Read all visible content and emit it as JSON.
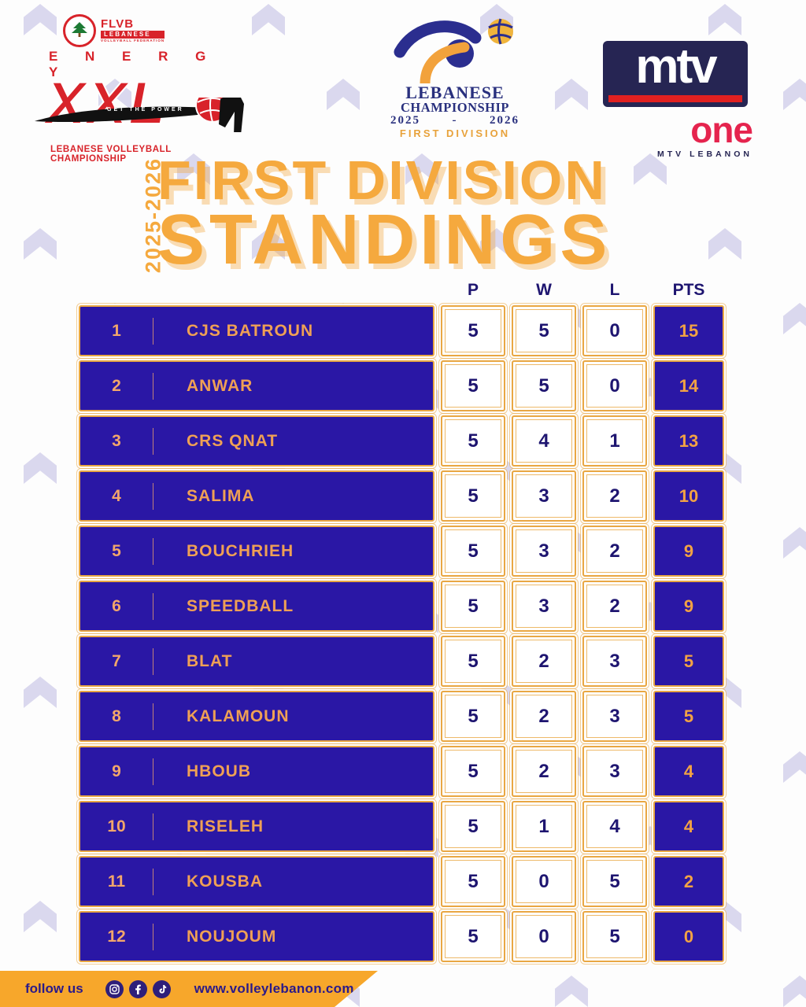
{
  "title": {
    "season_vertical": "2025-2026",
    "line1": "FIRST DIVISION",
    "line2": "STANDINGS"
  },
  "logos": {
    "flvb": {
      "name": "FLVB",
      "band": "LEBANESE",
      "sub": "VOLLEYBALL FEDERATION",
      "energy": "E N E R G Y",
      "xxl": "XXL",
      "swoosh_text": "GET THE POWER",
      "caption": "LEBANESE VOLLEYBALL CHAMPIONSHIP"
    },
    "championship": {
      "line1": "LEBANESE",
      "line2": "CHAMPIONSHIP",
      "year_left": "2025",
      "year_dash": "-",
      "year_right": "2026",
      "division": "FIRST DIVISION"
    },
    "mtv": {
      "mtv": "mtv",
      "one": "one",
      "caption": "MTV LEBANON"
    }
  },
  "chart_data": {
    "type": "table",
    "title": "FIRST DIVISION STANDINGS",
    "season": "2025-2026",
    "stat_columns": [
      "P",
      "W",
      "L",
      "PTS"
    ],
    "rows": [
      {
        "rank": "1",
        "team": "CJS BATROUN",
        "p": "5",
        "w": "5",
        "l": "0",
        "pts": "15"
      },
      {
        "rank": "2",
        "team": "ANWAR",
        "p": "5",
        "w": "5",
        "l": "0",
        "pts": "14"
      },
      {
        "rank": "3",
        "team": "CRS QNAT",
        "p": "5",
        "w": "4",
        "l": "1",
        "pts": "13"
      },
      {
        "rank": "4",
        "team": "SALIMA",
        "p": "5",
        "w": "3",
        "l": "2",
        "pts": "10"
      },
      {
        "rank": "5",
        "team": "BOUCHRIEH",
        "p": "5",
        "w": "3",
        "l": "2",
        "pts": "9"
      },
      {
        "rank": "6",
        "team": "SPEEDBALL",
        "p": "5",
        "w": "3",
        "l": "2",
        "pts": "9"
      },
      {
        "rank": "7",
        "team": "BLAT",
        "p": "5",
        "w": "2",
        "l": "3",
        "pts": "5"
      },
      {
        "rank": "8",
        "team": "KALAMOUN",
        "p": "5",
        "w": "2",
        "l": "3",
        "pts": "5"
      },
      {
        "rank": "9",
        "team": "HBOUB",
        "p": "5",
        "w": "2",
        "l": "3",
        "pts": "4"
      },
      {
        "rank": "10",
        "team": "RISELEH",
        "p": "5",
        "w": "1",
        "l": "4",
        "pts": "4"
      },
      {
        "rank": "11",
        "team": "KOUSBA",
        "p": "5",
        "w": "0",
        "l": "5",
        "pts": "2"
      },
      {
        "rank": "12",
        "team": "NOUJOUM",
        "p": "5",
        "w": "0",
        "l": "5",
        "pts": "0"
      }
    ]
  },
  "footer": {
    "follow_us": "follow us",
    "website": "www.volleylebanon.com",
    "icons": [
      "instagram-icon",
      "facebook-icon",
      "tiktok-icon"
    ]
  },
  "colors": {
    "row_navy": "#2a17a5",
    "ink_navy": "#1e1570",
    "gold_border": "#e9a743",
    "peach_text": "#f2a66b",
    "title_orange": "#f5a93e",
    "footer_orange": "#f7a72b",
    "logo_red": "#d8232a",
    "mtv_navy": "#262553",
    "one_red": "#e5244e",
    "chevron": "#dad8ee"
  }
}
